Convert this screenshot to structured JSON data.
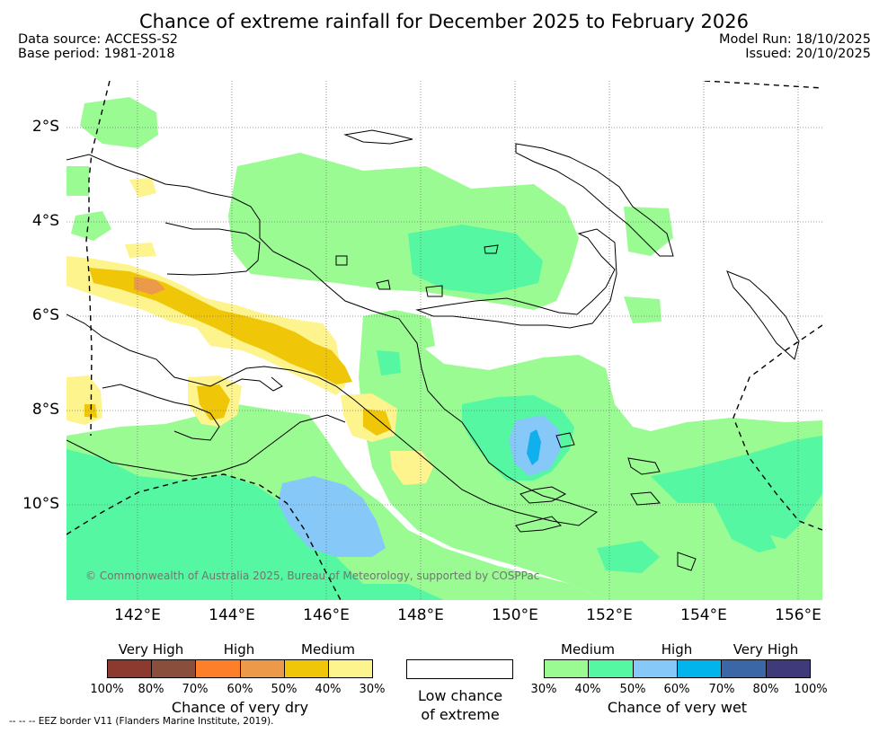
{
  "title": "Chance of extreme rainfall for December 2025 to February 2026",
  "meta": {
    "data_source": "Data source: ACCESS-S2",
    "base_period": "Base period: 1981-2018",
    "model_run": "Model Run: 18/10/2025",
    "issued": "Issued: 20/10/2025"
  },
  "map": {
    "lat_labels": [
      "2°S",
      "4°S",
      "6°S",
      "8°S",
      "10°S"
    ],
    "lon_labels": [
      "142°E",
      "144°E",
      "146°E",
      "148°E",
      "150°E",
      "152°E",
      "154°E",
      "156°E"
    ],
    "copyright": "© Commonwealth of Australia 2025, Bureau of Meteorology, supported by COSPPac",
    "colors": {
      "wet_medium_30": "#9afb93",
      "wet_medium_40": "#55f7a2",
      "wet_high_50": "#86c8f8",
      "wet_high_60": "#0fb0ec",
      "dry_medium_30": "#fdf48e",
      "dry_medium_40": "#f0c608",
      "dry_high_60": "#ec9a4a",
      "coast": "#000000"
    }
  },
  "legend": {
    "dry": {
      "groups": [
        "Very High",
        "High",
        "Medium"
      ],
      "ticks": [
        "100%",
        "80%",
        "70%",
        "60%",
        "50%",
        "40%",
        "30%"
      ],
      "colors": [
        "#8c3a2f",
        "#8a4e3c",
        "#fd7f2a",
        "#ec9a4a",
        "#f0c608",
        "#fdf48e"
      ],
      "caption": "Chance of very dry"
    },
    "neutral": {
      "line1": "Low chance",
      "line2": "of extreme"
    },
    "wet": {
      "groups": [
        "Medium",
        "High",
        "Very High"
      ],
      "ticks": [
        "30%",
        "40%",
        "50%",
        "60%",
        "70%",
        "80%",
        "100%"
      ],
      "colors": [
        "#9afb93",
        "#55f7a2",
        "#86c8f8",
        "#02b4ec",
        "#3b67a6",
        "#3f3b7a"
      ],
      "caption": "Chance of very wet"
    }
  },
  "eez_note": "-- -- -- EEZ border V11 (Flanders Marine Institute, 2019)."
}
